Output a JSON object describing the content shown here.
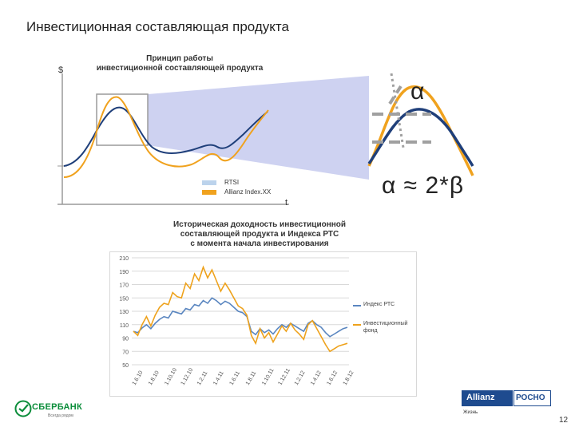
{
  "slide": {
    "title": "Инвестиционная составляющая продукта",
    "page_number": "12"
  },
  "concept": {
    "title_line1": "Принцип работы",
    "title_line2": "инвестиционной составляющей продукта",
    "y_axis_symbol": "$",
    "x_axis_symbol": "t",
    "legend": [
      "RTSI",
      "Allianz Index.XX"
    ],
    "alpha_symbol": "α",
    "formula": "α ≈ 2*β",
    "colors": {
      "rtsi": "#1f3f7a",
      "allianz": "#f0a21e",
      "zoom_fill": "#c9cdf0"
    }
  },
  "history": {
    "title_line1": "Историческая доходность инвестиционной",
    "title_line2": "составляющей продукта и Индекса РТС",
    "title_line3": "с момента начала инвестирования"
  },
  "chart_data": {
    "type": "line",
    "ylim": [
      50,
      210
    ],
    "yticks": [
      50,
      70,
      90,
      110,
      130,
      150,
      170,
      190,
      210
    ],
    "xticks": [
      "1.6.10",
      "1.8.10",
      "1.10.10",
      "1.12.10",
      "1.2.11",
      "1.4.11",
      "1.6.11",
      "1.8.11",
      "1.10.11",
      "1.12.11",
      "1.2.12",
      "1.4.12",
      "1.6.12",
      "1.8.12"
    ],
    "grid": true,
    "legend_position": "right",
    "series": [
      {
        "name": "Индекс РТС",
        "color": "#5a86c0",
        "values": [
          100,
          98,
          105,
          110,
          104,
          112,
          118,
          122,
          120,
          130,
          128,
          126,
          134,
          132,
          140,
          138,
          146,
          142,
          150,
          146,
          140,
          145,
          142,
          136,
          130,
          128,
          122,
          100,
          95,
          104,
          98,
          102,
          96,
          104,
          110,
          106,
          112,
          108,
          104,
          100,
          112,
          116,
          110,
          106,
          98,
          92,
          96,
          100,
          104,
          106
        ]
      },
      {
        "name": "Инвестиционный фонд",
        "color": "#eea21c",
        "values": [
          100,
          94,
          110,
          122,
          108,
          124,
          136,
          142,
          140,
          158,
          152,
          150,
          172,
          164,
          186,
          176,
          196,
          180,
          192,
          176,
          160,
          172,
          162,
          150,
          138,
          134,
          124,
          94,
          82,
          104,
          90,
          98,
          84,
          96,
          108,
          100,
          112,
          102,
          96,
          88,
          110,
          116,
          104,
          92,
          80,
          70,
          74,
          78,
          80,
          82
        ]
      }
    ]
  },
  "footer": {
    "sber_name": "СБЕРБАНК",
    "sber_tagline": "Всегда рядом",
    "allianz_name": "Allianz",
    "rosno_name": "РОСНО",
    "allianz_sub": "Жизнь"
  }
}
